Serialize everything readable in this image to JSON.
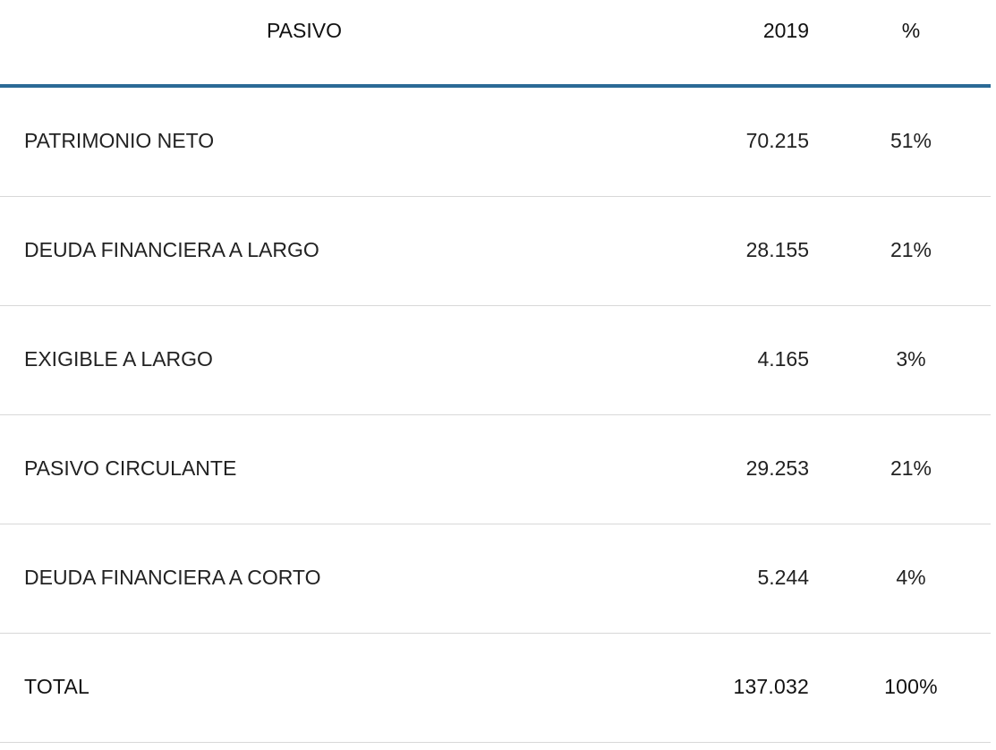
{
  "table": {
    "headers": {
      "label": "PASIVO",
      "year": "2019",
      "pct": "%"
    },
    "rows": [
      {
        "label": "PATRIMONIO NETO",
        "value": "70.215",
        "pct": "51%"
      },
      {
        "label": "DEUDA FINANCIERA A LARGO",
        "value": "28.155",
        "pct": "21%"
      },
      {
        "label": "EXIGIBLE A LARGO",
        "value": "4.165",
        "pct": "3%"
      },
      {
        "label": "PASIVO CIRCULANTE",
        "value": "29.253",
        "pct": "21%"
      },
      {
        "label": "DEUDA FINANCIERA A CORTO",
        "value": "5.244",
        "pct": "4%"
      }
    ],
    "total": {
      "label": "TOTAL",
      "value": "137.032",
      "pct": "100%"
    }
  },
  "colors": {
    "header_rule": "#2b6a96",
    "row_divider": "#d8d8d8",
    "text": "#222222"
  }
}
